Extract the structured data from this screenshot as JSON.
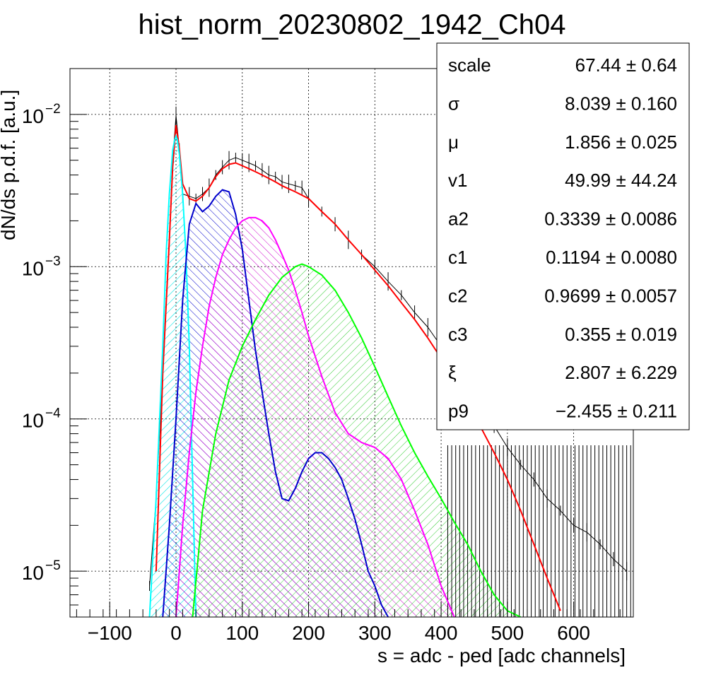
{
  "chart_data": {
    "type": "line",
    "title": "hist_norm_20230802_1942_Ch04",
    "xlabel": "s = adc - ped [adc channels]",
    "ylabel": "dN/ds p.d.f. [a.u.]",
    "xlim": [
      -160,
      690
    ],
    "ylim": [
      5e-06,
      0.02
    ],
    "yscale": "log",
    "grid": true,
    "x_ticks": [
      -100,
      0,
      100,
      200,
      300,
      400,
      500,
      600
    ],
    "x_tick_labels": [
      "−100",
      "0",
      "100",
      "200",
      "300",
      "400",
      "500",
      "600"
    ],
    "y_ticks": [
      1e-05,
      0.0001,
      0.001,
      0.01
    ],
    "y_tick_labels": [
      {
        "base": "10",
        "exp": "−5"
      },
      {
        "base": "10",
        "exp": "−4"
      },
      {
        "base": "10",
        "exp": "−3"
      },
      {
        "base": "10",
        "exp": "−2"
      }
    ],
    "series": [
      {
        "color": "#000000",
        "style": "histogram",
        "x": [
          -40,
          -30,
          -20,
          -10,
          -5,
          0,
          5,
          10,
          20,
          30,
          40,
          50,
          60,
          70,
          80,
          90,
          100,
          110,
          120,
          130,
          140,
          150,
          160,
          170,
          180,
          190,
          200,
          220,
          240,
          260,
          280,
          300,
          320,
          340,
          360,
          380,
          400,
          420,
          440,
          460,
          480,
          500,
          520,
          540,
          560,
          580,
          600,
          620,
          640,
          660,
          680
        ],
        "y": [
          8e-06,
          3e-05,
          0.0002,
          0.0015,
          0.005,
          0.0098,
          0.006,
          0.003,
          0.0029,
          0.0028,
          0.003,
          0.0033,
          0.004,
          0.0045,
          0.005,
          0.0052,
          0.005,
          0.0048,
          0.0046,
          0.0043,
          0.004,
          0.0039,
          0.0036,
          0.0035,
          0.0034,
          0.0033,
          0.0028,
          0.0023,
          0.0019,
          0.0015,
          0.0012,
          0.001,
          0.0008,
          0.00065,
          0.0005,
          0.0004,
          0.0003,
          0.00022,
          0.00016,
          0.00012,
          9e-05,
          6.5e-05,
          5e-05,
          4e-05,
          3e-05,
          2.5e-05,
          2e-05,
          1.8e-05,
          1.5e-05,
          1.2e-05,
          1e-05
        ]
      },
      {
        "color": "#ff0000",
        "style": "fit",
        "x": [
          -30,
          -20,
          -10,
          -5,
          0,
          5,
          10,
          20,
          30,
          40,
          50,
          60,
          70,
          80,
          90,
          100,
          110,
          120,
          130,
          140,
          150,
          160,
          180,
          200,
          220,
          240,
          260,
          280,
          300,
          320,
          340,
          360,
          380,
          400,
          420,
          440,
          460,
          480,
          500,
          520,
          540,
          560,
          580
        ],
        "y": [
          1e-05,
          0.0002,
          0.0015,
          0.0045,
          0.0085,
          0.006,
          0.0035,
          0.0028,
          0.0027,
          0.0029,
          0.0033,
          0.0039,
          0.0044,
          0.0047,
          0.0048,
          0.0046,
          0.0044,
          0.0042,
          0.004,
          0.0038,
          0.0036,
          0.0034,
          0.0031,
          0.0028,
          0.0023,
          0.0019,
          0.0015,
          0.0012,
          0.00095,
          0.00075,
          0.00058,
          0.00045,
          0.00034,
          0.00025,
          0.00018,
          0.000125,
          8.8e-05,
          6e-05,
          4e-05,
          2.5e-05,
          1.5e-05,
          9e-06,
          5.5e-06
        ]
      },
      {
        "color": "#00ffff",
        "fill": "#00e5e5",
        "style": "component",
        "x": [
          -40,
          -30,
          -20,
          -15,
          -10,
          -5,
          -2,
          0,
          2,
          5,
          10,
          15,
          20,
          25,
          30
        ],
        "y": [
          5e-06,
          3e-05,
          0.0003,
          0.0012,
          0.003,
          0.0058,
          0.0068,
          0.0072,
          0.0068,
          0.0055,
          0.003,
          0.0012,
          0.0003,
          4e-05,
          5e-06
        ]
      },
      {
        "color": "#0000cc",
        "fill": "#0000cc",
        "style": "component",
        "x": [
          -20,
          -10,
          0,
          10,
          20,
          30,
          40,
          50,
          60,
          70,
          80,
          90,
          100,
          110,
          120,
          130,
          140,
          150,
          160,
          170,
          180,
          190,
          200,
          210,
          220,
          230,
          240,
          250,
          260,
          270,
          280,
          290,
          300,
          310,
          320
        ],
        "y": [
          5e-06,
          2e-05,
          0.0001,
          0.0006,
          0.0019,
          0.0026,
          0.0023,
          0.0025,
          0.0029,
          0.0032,
          0.0031,
          0.0022,
          0.0013,
          0.0006,
          0.00028,
          0.00015,
          8e-05,
          4.5e-05,
          3e-05,
          2.9e-05,
          3.5e-05,
          4.5e-05,
          5.5e-05,
          6e-05,
          6e-05,
          5.5e-05,
          4.8e-05,
          4e-05,
          3e-05,
          2.2e-05,
          1.5e-05,
          1e-05,
          8e-06,
          6e-06,
          5e-06
        ]
      },
      {
        "color": "#ff00ff",
        "fill": "#cc00cc",
        "style": "component",
        "x": [
          0,
          10,
          20,
          30,
          40,
          50,
          60,
          70,
          80,
          90,
          100,
          110,
          120,
          130,
          140,
          150,
          160,
          170,
          180,
          190,
          200,
          220,
          240,
          260,
          280,
          300,
          320,
          340,
          360,
          380,
          400,
          420
        ],
        "y": [
          5e-06,
          2e-05,
          6e-05,
          0.00015,
          0.0003,
          0.00055,
          0.00085,
          0.0012,
          0.0015,
          0.0018,
          0.002,
          0.0021,
          0.0021,
          0.002,
          0.0018,
          0.0015,
          0.0012,
          0.00095,
          0.0007,
          0.0005,
          0.00035,
          0.00019,
          0.00011,
          8e-05,
          7e-05,
          6.5e-05,
          5.5e-05,
          4e-05,
          2.5e-05,
          1.5e-05,
          8e-06,
          5e-06
        ]
      },
      {
        "color": "#00ff00",
        "fill": "#33cc33",
        "style": "component",
        "x": [
          25,
          40,
          60,
          80,
          100,
          120,
          140,
          160,
          180,
          190,
          200,
          220,
          240,
          260,
          280,
          300,
          320,
          340,
          360,
          380,
          400,
          420,
          440,
          460,
          480,
          500,
          520
        ],
        "y": [
          5e-06,
          2.5e-05,
          8e-05,
          0.00018,
          0.0003,
          0.00045,
          0.00065,
          0.00085,
          0.001,
          0.00104,
          0.001,
          0.00088,
          0.0007,
          0.0005,
          0.00034,
          0.00022,
          0.00014,
          9e-05,
          6e-05,
          4.2e-05,
          3e-05,
          2.1e-05,
          1.5e-05,
          1e-05,
          7e-06,
          5.5e-06,
          5e-06
        ]
      }
    ]
  },
  "stats": [
    {
      "label": "scale",
      "value": "67.44 ± 0.64"
    },
    {
      "label": "σ",
      "value": "8.039 ± 0.160"
    },
    {
      "label": "μ",
      "value": "1.856 ± 0.025"
    },
    {
      "label": "v1",
      "value": "49.99 ± 44.24"
    },
    {
      "label": "a2",
      "value": "0.3339 ± 0.0086"
    },
    {
      "label": "c1",
      "value": "0.1194 ± 0.0080"
    },
    {
      "label": "c2",
      "value": "0.9699 ± 0.0057"
    },
    {
      "label": "c3",
      "value": "0.355 ± 0.019"
    },
    {
      "label": "ξ",
      "value": "2.807 ± 6.229"
    },
    {
      "label": "p9",
      "value": "−2.455 ± 0.211"
    }
  ]
}
